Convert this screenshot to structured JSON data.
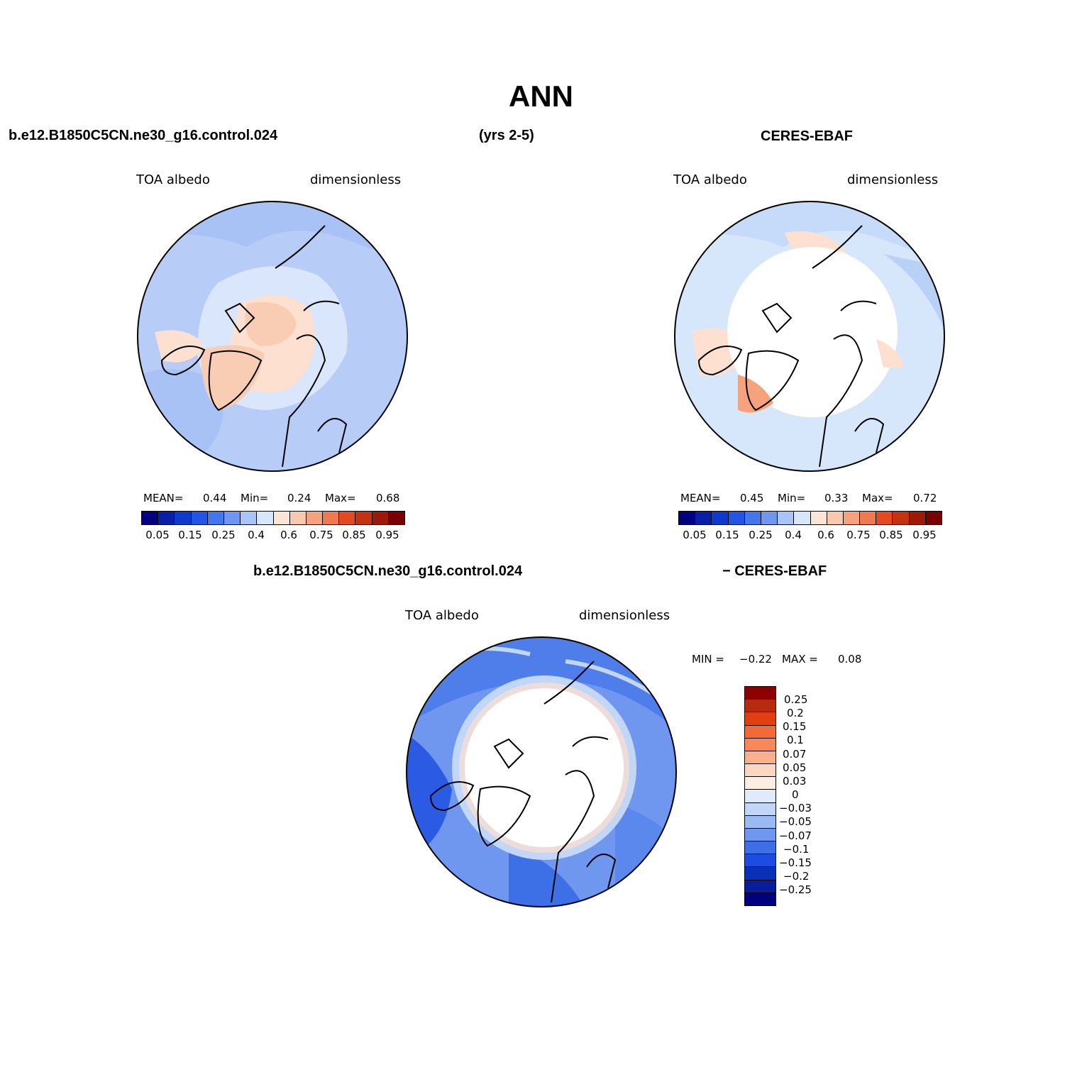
{
  "title": "ANN",
  "header": {
    "case": "b.e12.B1850C5CN.ne30_g16.control.024",
    "years": "(yrs 2-5)",
    "obs": "CERES-EBAF"
  },
  "bottom_header": {
    "case": "b.e12.B1850C5CN.ne30_g16.control.024",
    "obs": "- CERES-EBAF"
  },
  "panels": [
    {
      "variable": "TOA albedo",
      "units": "dimensionless",
      "stats": {
        "mean_label": "MEAN=",
        "mean": "0.44",
        "min_label": "Min=",
        "min": "0.24",
        "max_label": "Max=",
        "max": "0.68"
      }
    },
    {
      "variable": "TOA albedo",
      "units": "dimensionless",
      "stats": {
        "mean_label": "MEAN=",
        "mean": "0.45",
        "min_label": "Min=",
        "min": "0.33",
        "max_label": "Max=",
        "max": "0.72"
      }
    },
    {
      "variable": "TOA albedo",
      "units": "dimensionless",
      "stats": {
        "min_label": "MIN =",
        "min": "-0.22",
        "max_label": "MAX =",
        "max": "0.08"
      }
    }
  ],
  "colorbar": {
    "colors": [
      "#000080",
      "#0a1fa8",
      "#0d3acc",
      "#2255e6",
      "#4477ee",
      "#6f97f2",
      "#a9c4f7",
      "#d6e6fb",
      "#fde5d4",
      "#f9c9ae",
      "#f6a27c",
      "#f07a4f",
      "#e44a20",
      "#c4320e",
      "#9e1a08",
      "#7a0000"
    ],
    "labels": [
      "0.05",
      "0.15",
      "0.25",
      "0.4",
      "0.6",
      "0.75",
      "0.85",
      "0.95"
    ]
  },
  "diff_colorbar": {
    "colors": [
      "#8b0000",
      "#b82a10",
      "#e04010",
      "#f26a36",
      "#f9875a",
      "#fbb08d",
      "#fcd7c0",
      "#fdeee2",
      "#dfeafb",
      "#c2d7f7",
      "#9bbaf2",
      "#6f97ef",
      "#3d6fe6",
      "#1c4ce0",
      "#0b30b8",
      "#0a1d98",
      "#000080"
    ],
    "labels": [
      "0.25",
      "0.2",
      "0.15",
      "0.1",
      "0.07",
      "0.05",
      "0.03",
      "0",
      "-0.03",
      "-0.05",
      "-0.07",
      "-0.1",
      "-0.15",
      "-0.2",
      "-0.25"
    ]
  }
}
